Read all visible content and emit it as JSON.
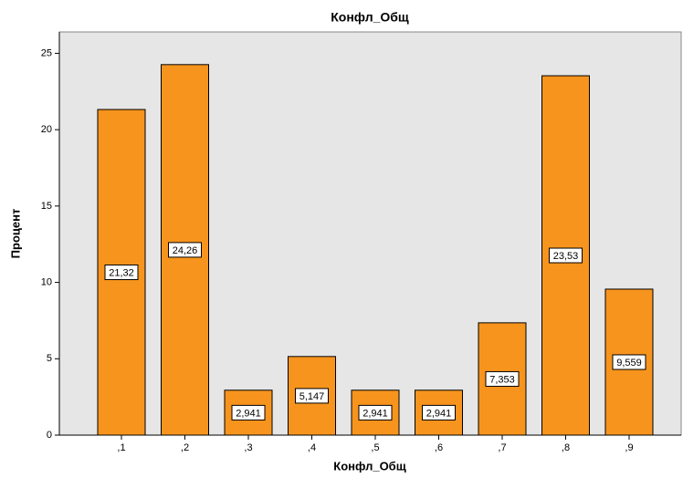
{
  "chart_data": {
    "type": "bar",
    "title": "Конфл_Общ",
    "x_label": "Конфл_Общ",
    "y_label": "Процент",
    "categories": [
      ",1",
      ",2",
      ",3",
      ",4",
      ",5",
      ",6",
      ",7",
      ",8",
      ",9"
    ],
    "values": [
      21.32,
      24.26,
      2.941,
      5.147,
      2.941,
      2.941,
      7.353,
      23.53,
      9.559
    ],
    "value_labels": [
      "21,32",
      "24,26",
      "2,941",
      "5,147",
      "2,941",
      "2,941",
      "7,353",
      "23,53",
      "9,559"
    ],
    "color": "#f7941d",
    "ylim": [
      0,
      26.4
    ],
    "yticks": [
      0,
      5,
      10,
      15,
      20,
      25
    ]
  }
}
